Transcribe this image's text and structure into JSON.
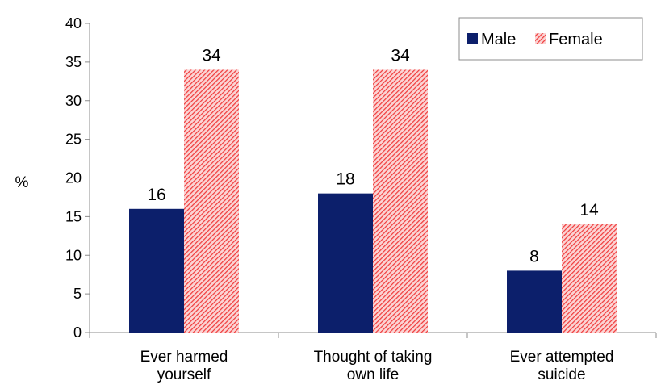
{
  "chart_data": {
    "type": "bar",
    "title": "",
    "xlabel": "",
    "ylabel": "%",
    "ylim": [
      0,
      40
    ],
    "yticks": [
      "0",
      "5",
      "10",
      "15",
      "20",
      "25",
      "30",
      "35",
      "40"
    ],
    "categories": [
      [
        "Ever harmed",
        "yourself"
      ],
      [
        "Thought of taking",
        "own life"
      ],
      [
        "Ever attempted",
        "suicide"
      ]
    ],
    "series": [
      {
        "name": "Male",
        "values": [
          16,
          18,
          8
        ],
        "color": "#0c1f6b",
        "pattern": "solid"
      },
      {
        "name": "Female",
        "values": [
          34,
          34,
          14
        ],
        "color": "#f03a3a",
        "pattern": "hatched"
      }
    ],
    "data_labels": [
      [
        "16",
        "18",
        "8"
      ],
      [
        "34",
        "34",
        "14"
      ]
    ],
    "legend": {
      "position": "top-right",
      "labels": [
        "Male",
        "Female"
      ]
    },
    "grid": false
  }
}
